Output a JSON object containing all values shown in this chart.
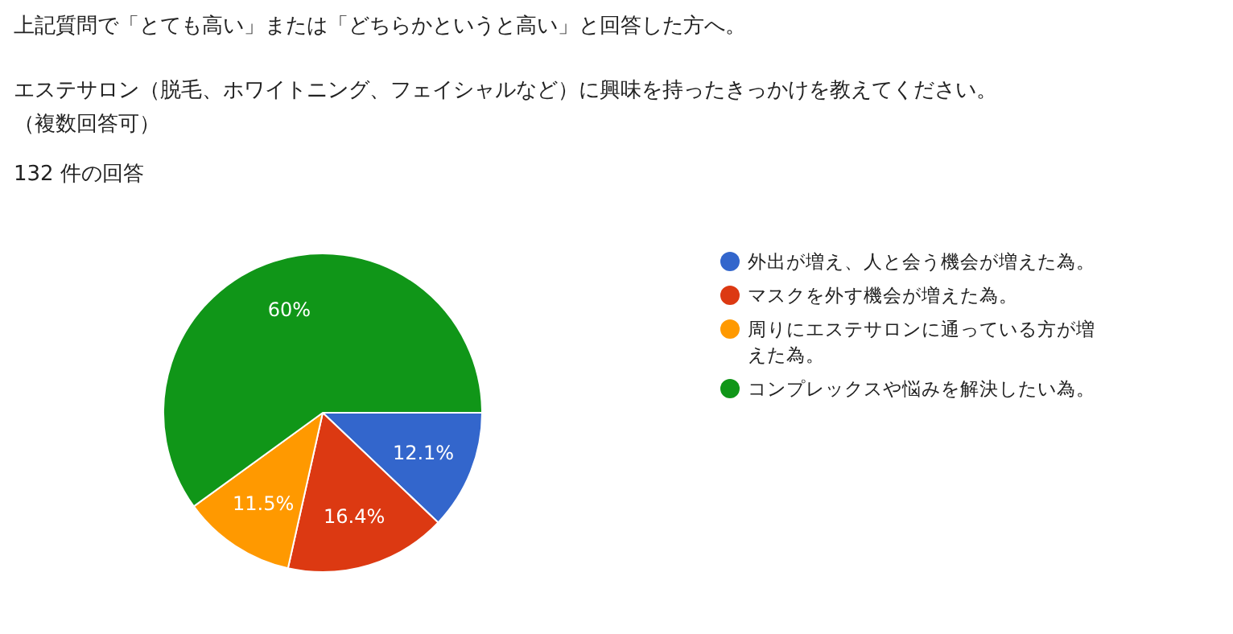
{
  "chart_data": {
    "type": "pie",
    "title": "上記質問で「とても高い」または「どちらかというと高い」と回答した方へ。",
    "annotations": [
      "エステサロン（脱毛、ホワイトニング、フェイシャルなど）に興味を持ったきっかけを教えてください。（複数回答可）"
    ],
    "subtitle": "132 件の回答",
    "categories": [
      "外出が増え、人と会う機会が増えた為。",
      "マスクを外す機会が増えた為。",
      "周りにエステサロンに通っている方が増えた為。",
      "コンプレックスや悩みを解決したい為。"
    ],
    "values": [
      12.1,
      16.4,
      11.5,
      60
    ],
    "colors": [
      "#3366cc",
      "#dc3912",
      "#ff9900",
      "#109618"
    ],
    "value_labels": [
      "12.1%",
      "16.4%",
      "11.5%",
      "60%"
    ],
    "legend": "right"
  }
}
